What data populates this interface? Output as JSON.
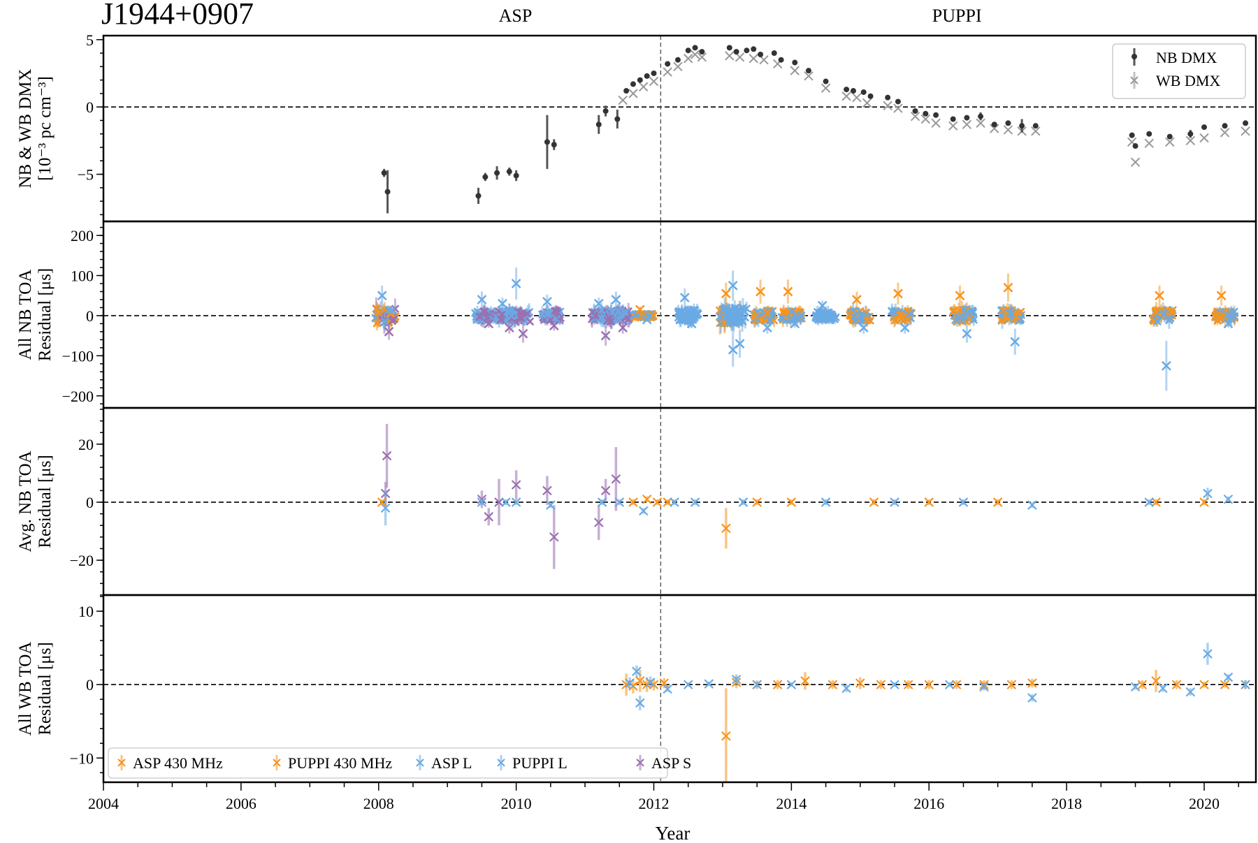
{
  "figure": {
    "title": "J1944+0907",
    "backend_labels": [
      {
        "text": "ASP",
        "x_year": 2010.0
      },
      {
        "text": "PUPPI",
        "x_year": 2016.3
      }
    ],
    "xlabel": "Year",
    "xticks": [
      2004,
      2006,
      2008,
      2010,
      2012,
      2014,
      2016,
      2018,
      2020
    ],
    "xlim": [
      2004,
      2020.8
    ],
    "backend_transition_year": 2012.1,
    "colors": {
      "nb_dmx": "#333333",
      "wb_dmx": "#999999",
      "asp_430": "#f7941d",
      "puppi_430": "#f7941d",
      "asp_l": "#6aaae4",
      "puppi_l": "#6aaae4",
      "asp_s": "#9a70b0"
    }
  },
  "chart_data": [
    {
      "type": "scatter",
      "panel": "dmx",
      "ylabel_line1": "NB & WB DMX",
      "ylabel_line2": "[10⁻³ pc cm⁻³]",
      "ylim": [
        -8.5,
        5.3
      ],
      "yticks": [
        -5,
        0,
        5
      ],
      "ytick_labels": [
        "−5",
        "0",
        "5"
      ],
      "legend": {
        "position": "upper right",
        "entries": [
          "NB DMX",
          "WB DMX"
        ]
      },
      "series": [
        {
          "name": "NB DMX",
          "marker": "o",
          "x": [
            2008.08,
            2008.13,
            2009.45,
            2009.55,
            2009.72,
            2009.9,
            2010.0,
            2010.45,
            2010.55,
            2011.2,
            2011.3,
            2011.47,
            2011.6,
            2011.7,
            2011.8,
            2011.9,
            2012.0,
            2012.2,
            2012.35,
            2012.5,
            2012.6,
            2012.7,
            2013.1,
            2013.2,
            2013.35,
            2013.45,
            2013.55,
            2013.75,
            2013.85,
            2014.05,
            2014.25,
            2014.5,
            2014.8,
            2014.9,
            2015.05,
            2015.15,
            2015.4,
            2015.55,
            2015.8,
            2015.95,
            2016.1,
            2016.35,
            2016.55,
            2016.75,
            2016.95,
            2017.15,
            2017.35,
            2017.55,
            2018.95,
            2019.0,
            2019.2,
            2019.5,
            2019.8,
            2020.0,
            2020.3,
            2020.6
          ],
          "y": [
            -4.9,
            -6.3,
            -6.6,
            -5.2,
            -4.9,
            -4.8,
            -5.1,
            -2.6,
            -2.8,
            -1.3,
            -0.3,
            -0.9,
            1.2,
            1.7,
            2.0,
            2.3,
            2.5,
            3.2,
            3.5,
            4.2,
            4.4,
            4.1,
            4.4,
            4.1,
            4.2,
            4.3,
            3.9,
            4.0,
            3.5,
            3.3,
            2.7,
            1.9,
            1.3,
            1.2,
            1.1,
            0.8,
            0.7,
            0.4,
            -0.3,
            -0.5,
            -0.6,
            -0.9,
            -0.8,
            -0.7,
            -1.3,
            -1.2,
            -1.4,
            -1.4,
            -2.1,
            -2.9,
            -2.0,
            -2.2,
            -2.0,
            -1.5,
            -1.4,
            -1.2
          ],
          "yerr": [
            0.3,
            1.6,
            0.6,
            0.3,
            0.5,
            0.3,
            0.4,
            2.0,
            0.4,
            0.7,
            0.4,
            0.7,
            0.1,
            0.1,
            0.1,
            0.1,
            0.1,
            0.1,
            0.1,
            0.1,
            0.1,
            0.1,
            0.1,
            0.1,
            0.1,
            0.1,
            0.1,
            0.1,
            0.1,
            0.1,
            0.1,
            0.1,
            0.1,
            0.1,
            0.1,
            0.1,
            0.1,
            0.1,
            0.1,
            0.1,
            0.1,
            0.1,
            0.1,
            0.3,
            0.1,
            0.1,
            0.5,
            0.1,
            0.1,
            0.1,
            0.1,
            0.1,
            0.3,
            0.1,
            0.1,
            0.1
          ]
        },
        {
          "name": "WB DMX",
          "marker": "x",
          "x": [
            2011.55,
            2011.7,
            2011.85,
            2012.0,
            2012.2,
            2012.35,
            2012.5,
            2012.6,
            2012.7,
            2013.1,
            2013.25,
            2013.45,
            2013.6,
            2013.8,
            2014.05,
            2014.25,
            2014.5,
            2014.8,
            2014.95,
            2015.1,
            2015.4,
            2015.55,
            2015.8,
            2015.95,
            2016.1,
            2016.35,
            2016.55,
            2016.75,
            2016.95,
            2017.15,
            2017.35,
            2017.55,
            2018.95,
            2019.0,
            2019.2,
            2019.5,
            2019.8,
            2020.0,
            2020.3,
            2020.6
          ],
          "y": [
            0.5,
            1.0,
            1.5,
            1.9,
            2.6,
            3.0,
            3.6,
            3.9,
            3.7,
            3.8,
            3.7,
            3.6,
            3.5,
            3.2,
            2.7,
            2.3,
            1.4,
            0.8,
            0.7,
            0.3,
            0.1,
            -0.1,
            -0.7,
            -0.9,
            -1.2,
            -1.4,
            -1.3,
            -1.2,
            -1.6,
            -1.7,
            -1.8,
            -1.8,
            -2.6,
            -4.1,
            -2.7,
            -2.6,
            -2.5,
            -2.3,
            -1.9,
            -1.8
          ],
          "yerr": []
        }
      ]
    },
    {
      "type": "scatter",
      "panel": "all_nb_toa",
      "ylabel_line1": "All NB TOA",
      "ylabel_line2": "Residual [μs]",
      "ylim": [
        -230,
        235
      ],
      "yticks": [
        -200,
        -100,
        0,
        100,
        200
      ],
      "ytick_labels": [
        "−200",
        "−100",
        "0",
        "100",
        "200"
      ],
      "clusters": [
        {
          "x": 2008.1,
          "backends": [
            "asp_l",
            "asp_s",
            "asp_430"
          ],
          "spread": 40,
          "extremes": [
            50,
            -40
          ]
        },
        {
          "x": 2009.55,
          "backends": [
            "asp_l",
            "asp_s"
          ],
          "spread": 25,
          "extremes": [
            40,
            -20
          ]
        },
        {
          "x": 2009.85,
          "backends": [
            "asp_l",
            "asp_s"
          ],
          "spread": 25,
          "extremes": [
            30,
            -30
          ]
        },
        {
          "x": 2010.05,
          "backends": [
            "asp_l",
            "asp_s"
          ],
          "spread": 30,
          "extremes": [
            80,
            -45
          ]
        },
        {
          "x": 2010.5,
          "backends": [
            "asp_l",
            "asp_s"
          ],
          "spread": 25,
          "extremes": [
            35,
            -25
          ]
        },
        {
          "x": 2011.25,
          "backends": [
            "asp_l",
            "asp_s"
          ],
          "spread": 30,
          "extremes": [
            30,
            -50
          ]
        },
        {
          "x": 2011.5,
          "backends": [
            "asp_l",
            "asp_s"
          ],
          "spread": 30,
          "extremes": [
            40,
            -30
          ]
        },
        {
          "x": 2011.85,
          "backends": [
            "asp_430",
            "asp_l"
          ],
          "spread": 10,
          "extremes": [
            15,
            -10
          ]
        },
        {
          "x": 2012.5,
          "backends": [
            "puppi_l"
          ],
          "spread": 30,
          "extremes": [
            45,
            -20
          ]
        },
        {
          "x": 2013.1,
          "backends": [
            "puppi_430",
            "puppi_l"
          ],
          "spread": 40,
          "extremes": [
            55,
            -85
          ]
        },
        {
          "x": 2013.2,
          "backends": [
            "puppi_l"
          ],
          "spread": 40,
          "extremes": [
            75,
            -70
          ]
        },
        {
          "x": 2013.6,
          "backends": [
            "puppi_430",
            "puppi_l"
          ],
          "spread": 25,
          "extremes": [
            60,
            -30
          ]
        },
        {
          "x": 2014.0,
          "backends": [
            "puppi_430",
            "puppi_l"
          ],
          "spread": 25,
          "extremes": [
            60,
            -20
          ]
        },
        {
          "x": 2014.5,
          "backends": [
            "puppi_l"
          ],
          "spread": 20,
          "extremes": [
            25,
            -10
          ]
        },
        {
          "x": 2015.0,
          "backends": [
            "puppi_430",
            "puppi_l"
          ],
          "spread": 25,
          "extremes": [
            40,
            -30
          ]
        },
        {
          "x": 2015.6,
          "backends": [
            "puppi_430",
            "puppi_l"
          ],
          "spread": 25,
          "extremes": [
            55,
            -30
          ]
        },
        {
          "x": 2016.5,
          "backends": [
            "puppi_430",
            "puppi_l"
          ],
          "spread": 30,
          "extremes": [
            50,
            -45
          ]
        },
        {
          "x": 2017.2,
          "backends": [
            "puppi_430",
            "puppi_l"
          ],
          "spread": 30,
          "extremes": [
            70,
            -65
          ]
        },
        {
          "x": 2019.4,
          "backends": [
            "puppi_430",
            "puppi_l"
          ],
          "spread": 30,
          "extremes": [
            50,
            -125
          ]
        },
        {
          "x": 2020.3,
          "backends": [
            "puppi_430",
            "puppi_l"
          ],
          "spread": 25,
          "extremes": [
            50,
            -20
          ]
        }
      ]
    },
    {
      "type": "scatter",
      "panel": "avg_nb_toa",
      "ylabel_line1": "Avg. NB TOA",
      "ylabel_line2": "Residual [μs]",
      "ylim": [
        -32,
        32.5
      ],
      "yticks": [
        -20,
        0,
        20
      ],
      "ytick_labels": [
        "−20",
        "0",
        "20"
      ],
      "series": [
        {
          "name": "ASP S",
          "x": [
            2008.12,
            2008.1,
            2009.5,
            2009.6,
            2009.75,
            2010.0,
            2010.45,
            2010.55,
            2011.2,
            2011.3,
            2011.45
          ],
          "y": [
            16,
            3,
            1,
            -5,
            0,
            6,
            4,
            -12,
            -7,
            4,
            8
          ],
          "yerr": [
            11,
            4,
            3,
            3,
            8,
            5,
            5,
            11,
            6,
            4,
            11
          ]
        },
        {
          "name": "ASP L",
          "x": [
            2008.1,
            2009.5,
            2009.85,
            2010.0,
            2010.5,
            2011.25,
            2011.5,
            2011.85
          ],
          "y": [
            -2,
            0,
            0,
            0,
            -1,
            0,
            0,
            -3
          ],
          "yerr": [
            6,
            1,
            1,
            1,
            1,
            1,
            1,
            1
          ]
        },
        {
          "name": "ASP 430 MHz",
          "x": [
            2008.05,
            2011.7,
            2011.9,
            2012.05
          ],
          "y": [
            0,
            0,
            1,
            0
          ],
          "yerr": [
            1,
            1,
            1,
            1
          ]
        },
        {
          "name": "PUPPI 430 MHz",
          "x": [
            2012.2,
            2013.05,
            2013.5,
            2014.0,
            2015.2,
            2016.0,
            2017.0,
            2019.3,
            2020.0
          ],
          "y": [
            0,
            -9,
            0,
            0,
            0,
            0,
            0,
            0,
            0
          ],
          "yerr": [
            1,
            7,
            1,
            1,
            1,
            1,
            1,
            1,
            1
          ]
        },
        {
          "name": "PUPPI L",
          "x": [
            2012.3,
            2012.6,
            2013.3,
            2014.5,
            2015.5,
            2016.5,
            2017.5,
            2019.2,
            2020.05,
            2020.35
          ],
          "y": [
            0,
            0,
            0,
            0,
            0,
            0,
            -1,
            0,
            3,
            1
          ],
          "yerr": [
            1,
            1,
            1,
            1,
            1,
            1,
            1,
            1,
            2,
            1
          ]
        }
      ]
    },
    {
      "type": "scatter",
      "panel": "all_wb_toa",
      "ylabel_line1": "All WB TOA",
      "ylabel_line2": "Residual [μs]",
      "ylim": [
        -13.3,
        12.2
      ],
      "yticks": [
        -10,
        0,
        10
      ],
      "ytick_labels": [
        "−10",
        "0",
        "10"
      ],
      "legend": {
        "position": "lower left",
        "ncol": 5,
        "entries": [
          "ASP 430 MHz",
          "PUPPI 430 MHz",
          "ASP L",
          "PUPPI L",
          "ASP S"
        ]
      },
      "series": [
        {
          "name": "ASP 430 MHz",
          "x": [
            2011.6,
            2011.7,
            2011.8,
            2011.9,
            2012.0
          ],
          "y": [
            0,
            -0.2,
            0.5,
            0,
            0
          ],
          "yerr": [
            1.5,
            1,
            1.5,
            1,
            0.8
          ]
        },
        {
          "name": "PUPPI 430 MHz",
          "x": [
            2012.15,
            2013.05,
            2013.2,
            2013.5,
            2013.8,
            2014.2,
            2014.6,
            2015.0,
            2015.3,
            2015.7,
            2016.0,
            2016.4,
            2016.8,
            2017.2,
            2017.5,
            2019.1,
            2019.3,
            2019.6,
            2020.0,
            2020.3,
            2020.6
          ],
          "y": [
            0.2,
            -7,
            0.3,
            0,
            0,
            0.5,
            0,
            0.2,
            0,
            0,
            0,
            0,
            0,
            0,
            0.2,
            0,
            0.5,
            0,
            0,
            0,
            0
          ],
          "yerr": [
            0.7,
            6.5,
            0.8,
            0.6,
            0.6,
            1.2,
            0.6,
            0.8,
            0.6,
            0.6,
            0.6,
            0.6,
            0.6,
            0.6,
            0.6,
            0.6,
            1.5,
            0.6,
            0.4,
            0.4,
            0.6
          ]
        },
        {
          "name": "ASP L",
          "x": [
            2011.65,
            2011.75,
            2011.8,
            2011.95
          ],
          "y": [
            0.2,
            1.8,
            -2.5,
            0.3
          ],
          "yerr": [
            0.8,
            0.8,
            1.0,
            0.8
          ]
        },
        {
          "name": "PUPPI L",
          "x": [
            2012.2,
            2012.5,
            2012.8,
            2013.2,
            2013.5,
            2014.0,
            2014.8,
            2015.5,
            2016.3,
            2016.8,
            2017.5,
            2019.0,
            2019.4,
            2019.8,
            2020.05,
            2020.35,
            2020.6
          ],
          "y": [
            -0.6,
            0,
            0.1,
            0.7,
            0,
            0,
            -0.5,
            0,
            0,
            -0.3,
            -1.8,
            -0.3,
            -0.5,
            -1.0,
            4.2,
            1.0,
            0
          ],
          "yerr": [
            0.4,
            0.3,
            0.3,
            0.7,
            0.4,
            0.3,
            0.5,
            0.3,
            0.3,
            0.5,
            0.5,
            0.4,
            0.5,
            0.5,
            1.5,
            0.4,
            0.6
          ]
        }
      ]
    }
  ]
}
